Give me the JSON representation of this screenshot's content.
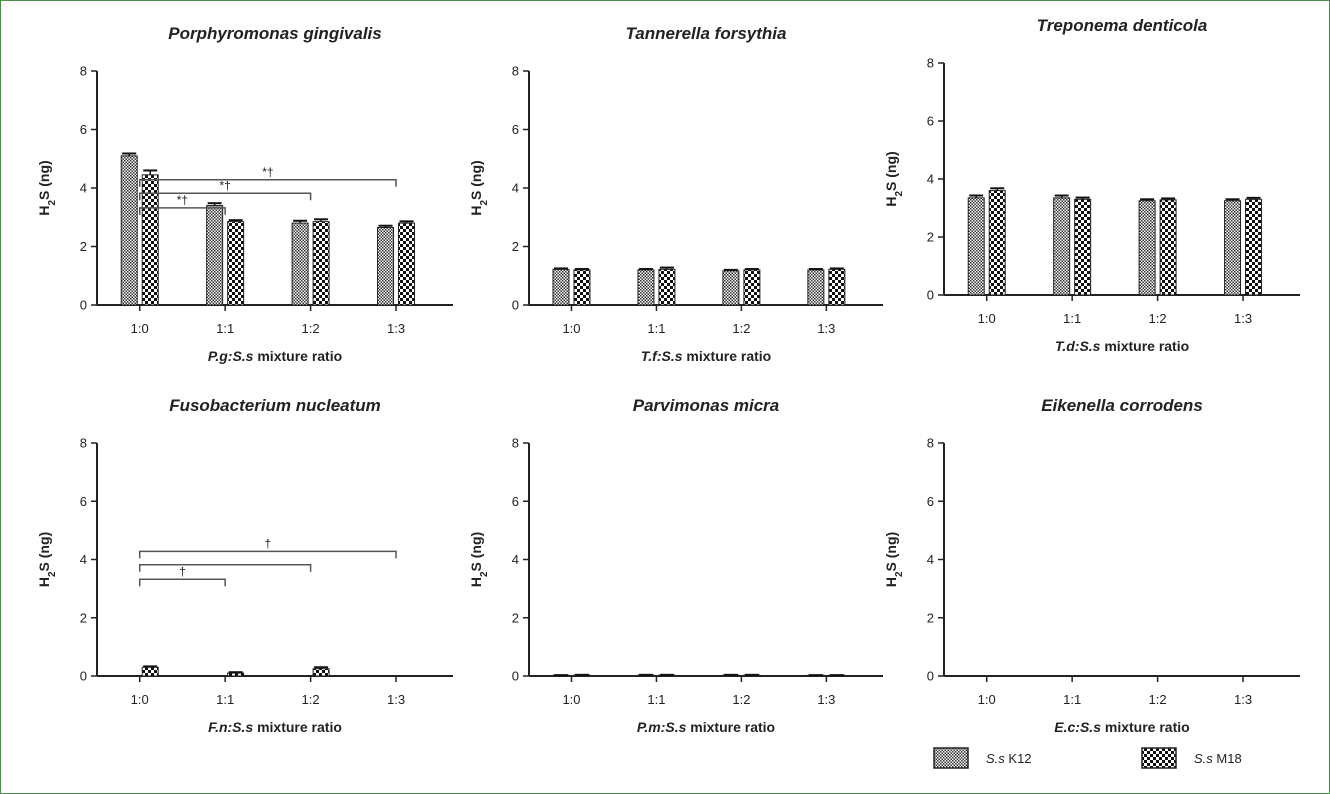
{
  "figure": {
    "legend": [
      {
        "pre": "S.s",
        "post": " K12"
      },
      {
        "pre": "S.s",
        "post": " M18"
      }
    ]
  },
  "chart_data": [
    {
      "type": "bar",
      "title": "Porphyromonas gingivalis",
      "xlabel_pre": "P.g:S.s",
      "xlabel_post": " mixture ratio",
      "ylabel_main": "H",
      "ylabel_sub": "2",
      "ylabel_rest": "S (ng)",
      "categories": [
        "1:0",
        "1:1",
        "1:2",
        "1:3"
      ],
      "ylim": [
        0,
        8
      ],
      "yticks": [
        0,
        2,
        4,
        6,
        8
      ],
      "series": [
        {
          "name": "S.s K12",
          "values": [
            5.1,
            3.4,
            2.8,
            2.65
          ],
          "errors": [
            0.08,
            0.08,
            0.08,
            0.06
          ]
        },
        {
          "name": "S.s M18",
          "values": [
            4.45,
            2.85,
            2.85,
            2.8
          ],
          "errors": [
            0.15,
            0.05,
            0.08,
            0.06
          ]
        }
      ],
      "annotations": [
        {
          "from": 0,
          "to": 1,
          "text": "*†"
        },
        {
          "from": 0,
          "to": 2,
          "text": "*†"
        },
        {
          "from": 0,
          "to": 3,
          "text": "*†"
        }
      ]
    },
    {
      "type": "bar",
      "title": "Tannerella forsythia",
      "xlabel_pre": "T.f:S.s",
      "xlabel_post": " mixture ratio",
      "ylabel_main": "H",
      "ylabel_sub": "2",
      "ylabel_rest": "S (ng)",
      "categories": [
        "1:0",
        "1:1",
        "1:2",
        "1:3"
      ],
      "ylim": [
        0,
        8
      ],
      "yticks": [
        0,
        2,
        4,
        6,
        8
      ],
      "series": [
        {
          "name": "S.s K12",
          "values": [
            1.22,
            1.2,
            1.17,
            1.2
          ],
          "errors": [
            0.03,
            0.03,
            0.03,
            0.03
          ]
        },
        {
          "name": "S.s M18",
          "values": [
            1.2,
            1.22,
            1.2,
            1.22
          ],
          "errors": [
            0.03,
            0.06,
            0.03,
            0.03
          ]
        }
      ],
      "annotations": []
    },
    {
      "type": "bar",
      "title": "Treponema denticola",
      "xlabel_pre": "T.d:S.s",
      "xlabel_post": " mixture ratio",
      "ylabel_main": "H",
      "ylabel_sub": "2",
      "ylabel_rest": "S (ng)",
      "categories": [
        "1:0",
        "1:1",
        "1:2",
        "1:3"
      ],
      "ylim": [
        0,
        8
      ],
      "yticks": [
        0,
        2,
        4,
        6,
        8
      ],
      "series": [
        {
          "name": "S.s K12",
          "values": [
            3.35,
            3.35,
            3.25,
            3.25
          ],
          "errors": [
            0.08,
            0.08,
            0.05,
            0.05
          ]
        },
        {
          "name": "S.s M18",
          "values": [
            3.6,
            3.3,
            3.28,
            3.3
          ],
          "errors": [
            0.08,
            0.06,
            0.05,
            0.05
          ]
        }
      ],
      "annotations": []
    },
    {
      "type": "bar",
      "title": "Fusobacterium nucleatum",
      "xlabel_pre": "F.n:S.s",
      "xlabel_post": " mixture ratio",
      "ylabel_main": "H",
      "ylabel_sub": "2",
      "ylabel_rest": "S (ng)",
      "categories": [
        "1:0",
        "1:1",
        "1:2",
        "1:3"
      ],
      "ylim": [
        0,
        8
      ],
      "yticks": [
        0,
        2,
        4,
        6,
        8
      ],
      "series": [
        {
          "name": "S.s K12",
          "values": [
            0,
            0,
            0,
            0
          ],
          "errors": [
            0,
            0,
            0,
            0
          ]
        },
        {
          "name": "S.s M18",
          "values": [
            0.3,
            0.1,
            0.25,
            0
          ],
          "errors": [
            0.03,
            0.03,
            0.05,
            0
          ]
        }
      ],
      "annotations": [
        {
          "from": 0,
          "to": 1,
          "text": "†"
        },
        {
          "from": 0,
          "to": 2,
          "text": ""
        },
        {
          "from": 0,
          "to": 3,
          "text": "†"
        }
      ]
    },
    {
      "type": "bar",
      "title": "Parvimonas micra",
      "xlabel_pre": "P.m:S.s",
      "xlabel_post": " mixture ratio",
      "ylabel_main": "H",
      "ylabel_sub": "2",
      "ylabel_rest": "S (ng)",
      "categories": [
        "1:0",
        "1:1",
        "1:2",
        "1:3"
      ],
      "ylim": [
        0,
        8
      ],
      "yticks": [
        0,
        2,
        4,
        6,
        8
      ],
      "series": [
        {
          "name": "S.s K12",
          "values": [
            0.02,
            0.03,
            0.03,
            0.02
          ],
          "errors": [
            0.01,
            0.01,
            0.01,
            0.01
          ]
        },
        {
          "name": "S.s M18",
          "values": [
            0.03,
            0.03,
            0.03,
            0.02
          ],
          "errors": [
            0.01,
            0.01,
            0.01,
            0.01
          ]
        }
      ],
      "annotations": []
    },
    {
      "type": "bar",
      "title": "Eikenella corrodens",
      "xlabel_pre": "E.c:S.s",
      "xlabel_post": " mixture ratio",
      "ylabel_main": "H",
      "ylabel_sub": "2",
      "ylabel_rest": "S (ng)",
      "categories": [
        "1:0",
        "1:1",
        "1:2",
        "1:3"
      ],
      "ylim": [
        0,
        8
      ],
      "yticks": [
        0,
        2,
        4,
        6,
        8
      ],
      "series": [
        {
          "name": "S.s K12",
          "values": [
            0,
            0,
            0,
            0
          ],
          "errors": [
            0,
            0,
            0,
            0
          ]
        },
        {
          "name": "S.s M18",
          "values": [
            0,
            0,
            0,
            0
          ],
          "errors": [
            0,
            0,
            0,
            0
          ]
        }
      ],
      "annotations": []
    }
  ]
}
